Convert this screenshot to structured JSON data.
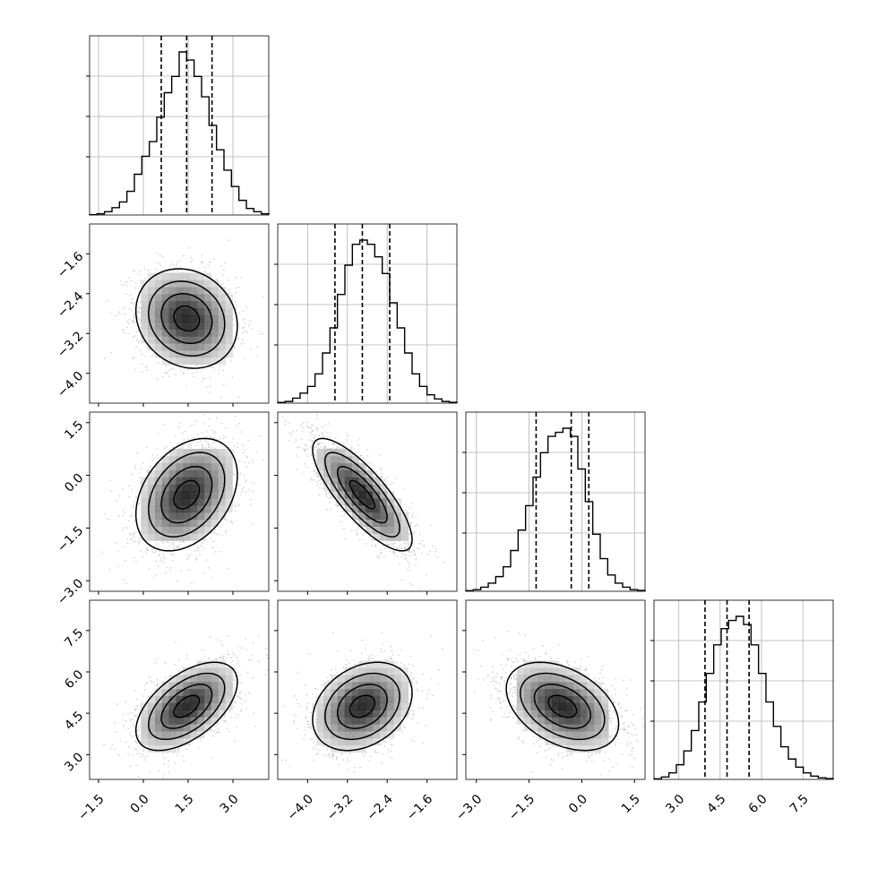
{
  "chart_data": {
    "type": "scatter",
    "layout": "corner-plot",
    "parameters": [
      {
        "range": [
          -1.8,
          4.2
        ],
        "ticks": [
          -1.5,
          0.0,
          1.5,
          3.0
        ],
        "tick_labels": [
          "−1.5",
          "0.0",
          "1.5",
          "3.0"
        ],
        "hist_x": [
          -1.7,
          -1.45,
          -1.2,
          -0.95,
          -0.7,
          -0.45,
          -0.2,
          0.05,
          0.3,
          0.55,
          0.8,
          1.05,
          1.3,
          1.55,
          1.8,
          2.05,
          2.3,
          2.55,
          2.8,
          3.05,
          3.3,
          3.55,
          3.8,
          4.05
        ],
        "hist_y": [
          0.5,
          1.5,
          4,
          9,
          16,
          29,
          50,
          72,
          90,
          120,
          150,
          170,
          200,
          190,
          170,
          145,
          110,
          80,
          55,
          35,
          18,
          8,
          4,
          1.5
        ],
        "quantiles": [
          0.6,
          1.45,
          2.3
        ]
      },
      {
        "range": [
          -4.6,
          -1.0
        ],
        "ticks": [
          -4.0,
          -3.2,
          -2.4,
          -1.6
        ],
        "tick_labels": [
          "−4.0",
          "−3.2",
          "−2.4",
          "−1.6"
        ],
        "hist_x": [
          -4.5,
          -4.35,
          -4.2,
          -4.05,
          -3.9,
          -3.75,
          -3.6,
          -3.45,
          -3.3,
          -3.15,
          -3.0,
          -2.85,
          -2.7,
          -2.55,
          -2.4,
          -2.25,
          -2.1,
          -1.95,
          -1.8,
          -1.65,
          -1.5,
          -1.35,
          -1.2,
          -1.05
        ],
        "hist_y": [
          0.8,
          2,
          6,
          12,
          20,
          35,
          60,
          90,
          130,
          165,
          190,
          195,
          190,
          175,
          155,
          120,
          90,
          60,
          35,
          20,
          10,
          5,
          2,
          1
        ],
        "quantiles": [
          -3.45,
          -2.9,
          -2.35
        ]
      },
      {
        "range": [
          -3.3,
          1.8
        ],
        "ticks": [
          -3.0,
          -1.5,
          0.0,
          1.5
        ],
        "tick_labels": [
          "−3.0",
          "−1.5",
          "0.0",
          "1.5"
        ],
        "hist_y": [
          0.8,
          2,
          5,
          10,
          18,
          30,
          50,
          75,
          105,
          140,
          170,
          190,
          195,
          200,
          190,
          150,
          110,
          70,
          40,
          20,
          10,
          5,
          2,
          1
        ],
        "quantiles": [
          -1.3,
          -0.3,
          0.2
        ]
      },
      {
        "range": [
          2.1,
          8.6
        ],
        "ticks": [
          3.0,
          4.5,
          6.0,
          7.5
        ],
        "tick_labels": [
          "3.0",
          "4.5",
          "6.0",
          "7.5"
        ],
        "hist_y": [
          0.8,
          3,
          8,
          18,
          35,
          60,
          95,
          130,
          165,
          185,
          195,
          200,
          190,
          165,
          130,
          95,
          65,
          40,
          25,
          15,
          8,
          4,
          2,
          1
        ],
        "quantiles": [
          3.95,
          4.75,
          5.55
        ]
      }
    ],
    "pairs": [
      {
        "row": 1,
        "col": 0,
        "center": [
          1.45,
          -2.9
        ],
        "sd": [
          0.85,
          0.5
        ],
        "rho": -0.15
      },
      {
        "row": 2,
        "col": 0,
        "center": [
          1.45,
          -0.55
        ],
        "sd": [
          0.85,
          0.8
        ],
        "rho": 0.35
      },
      {
        "row": 2,
        "col": 1,
        "center": [
          -2.9,
          -0.55
        ],
        "sd": [
          0.5,
          0.8
        ],
        "rho": -0.8
      },
      {
        "row": 3,
        "col": 0,
        "center": [
          1.45,
          4.75
        ],
        "sd": [
          0.85,
          0.8
        ],
        "rho": 0.55
      },
      {
        "row": 3,
        "col": 1,
        "center": [
          -2.9,
          4.75
        ],
        "sd": [
          0.5,
          0.8
        ],
        "rho": 0.3
      },
      {
        "row": 3,
        "col": 2,
        "center": [
          -0.55,
          4.75
        ],
        "sd": [
          0.8,
          0.8
        ],
        "rho": -0.4
      }
    ],
    "contour_levels_sigma": [
      0.5,
      1.0,
      1.5,
      2.0
    ],
    "grid": true,
    "title": "",
    "xlabel": "",
    "ylabel": ""
  },
  "colors": {
    "line": "#000000",
    "grid": "#b0b0b0",
    "points": "#8c8c8c",
    "background": "#ffffff"
  }
}
